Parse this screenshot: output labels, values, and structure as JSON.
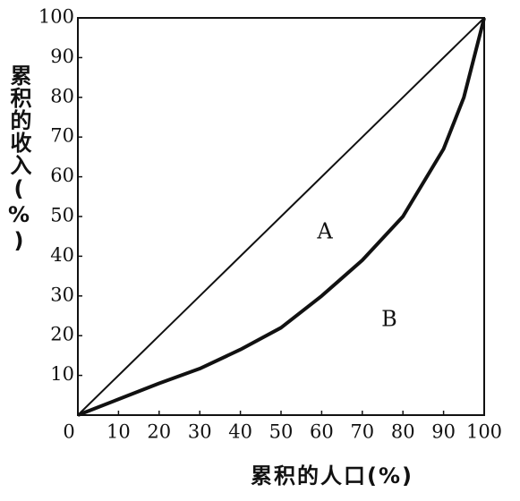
{
  "chart_data": {
    "type": "line",
    "x_label": "累积的人口(%)",
    "y_label": "累积的收入(%)",
    "x": [
      0,
      10,
      20,
      30,
      40,
      50,
      60,
      70,
      80,
      90,
      95,
      100
    ],
    "series": [
      {
        "color": "#111111",
        "values": [
          0,
          10,
          20,
          30,
          40,
          50,
          60,
          70,
          80,
          90,
          95,
          100
        ]
      },
      {
        "color": "#111111",
        "values": [
          0,
          4,
          8,
          11.7,
          16.5,
          22,
          30,
          39,
          50,
          67,
          80,
          100
        ]
      }
    ],
    "annotations": [
      "A",
      "B"
    ],
    "xlim": [
      0,
      100
    ],
    "ylim": [
      0,
      100
    ],
    "xticks": [
      0,
      10,
      20,
      30,
      40,
      50,
      60,
      70,
      80,
      90,
      100
    ],
    "yticks": [
      10,
      20,
      30,
      40,
      50,
      60,
      70,
      80,
      90,
      100
    ],
    "grid": false
  }
}
